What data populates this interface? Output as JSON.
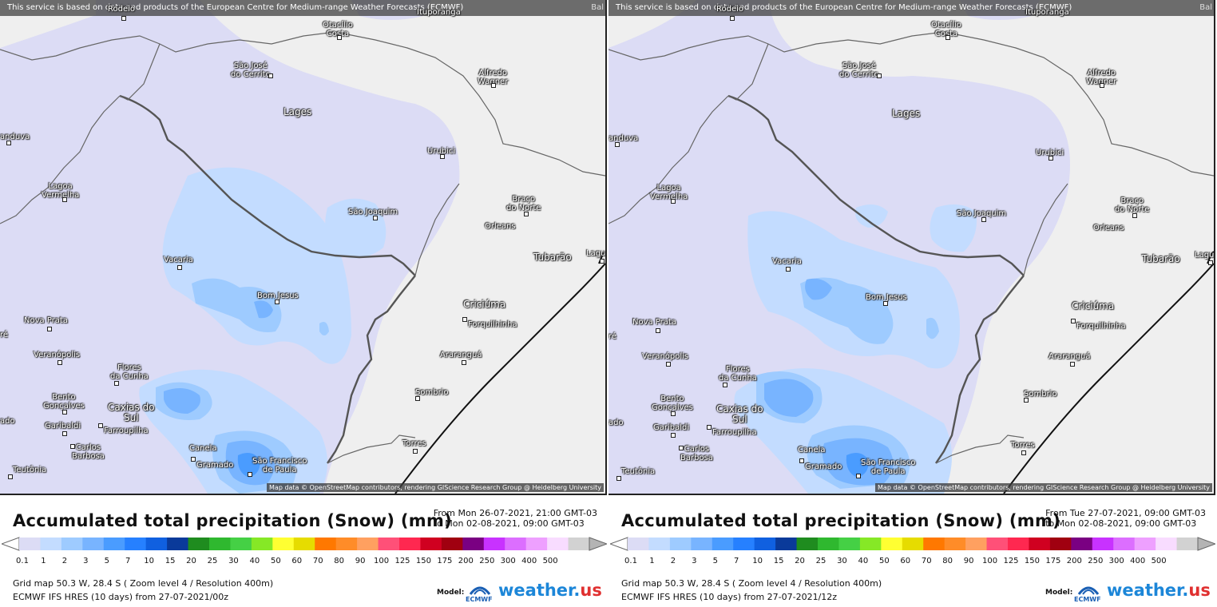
{
  "banner_text": "This service is based on data and products of the European Centre for Medium-range Weather Forecasts (ECMWF)",
  "attribution": "Map data © OpenStreetMap contributors, rendering GIScience Research Group @ Heidelberg University",
  "legend_title": "Accumulated total precipitation (Snow) (mm)",
  "scale_values": [
    "0.1",
    "1",
    "2",
    "3",
    "5",
    "7",
    "10",
    "15",
    "20",
    "25",
    "30",
    "40",
    "50",
    "60",
    "70",
    "80",
    "90",
    "100",
    "125",
    "150",
    "175",
    "200",
    "250",
    "300",
    "400",
    "500"
  ],
  "scale_colors": [
    "#dcdcf5",
    "#c3dcff",
    "#9ecbff",
    "#78b4ff",
    "#4a9cff",
    "#2680ff",
    "#1060e0",
    "#0a3a9a",
    "#1f8c1f",
    "#2fb82f",
    "#45d045",
    "#86e826",
    "#ffff32",
    "#e6dc00",
    "#ff7800",
    "#ff8c28",
    "#ffa060",
    "#ff5078",
    "#ff2850",
    "#d00020",
    "#a00010",
    "#7a0082",
    "#c832ff",
    "#dc6eff",
    "#eea0ff",
    "#f8dcff",
    "#d2d2d2"
  ],
  "model_label": "Model:",
  "ecmwf_name": "ECMWF",
  "brand_name": "weather.",
  "brand_tld": "us",
  "panels": [
    {
      "from_line": "From Mon 26-07-2021, 21:00 GMT-03",
      "to_line": "to Mon 02-08-2021, 09:00 GMT-03",
      "grid_info": "Grid map 50.3 W, 28.4 S ( Zoom level 4 / Resolution 400m)",
      "model_info": "ECMWF IFS HRES (10 days) from 27-07-2021/00z"
    },
    {
      "from_line": "From Tue 27-07-2021, 09:00 GMT-03",
      "to_line": "to Mon 02-08-2021, 09:00 GMT-03",
      "grid_info": "Grid map 50.3 W, 28.4 S ( Zoom level 4 / Resolution 400m)",
      "model_info": "ECMWF IFS HRES (10 days) from 27-07-2021/12z"
    }
  ],
  "banner_corner": "Bal",
  "cities": {
    "rodeio": "Rodeio",
    "otacilio_l1": "Otacílio",
    "otacilio_l2": "Costa",
    "ituporanga": "Ituporanga",
    "saojose_l1": "São José",
    "saojose_l2": "do Cerrito",
    "alfredo_l1": "Alfredo",
    "alfredo_l2": "Wagner",
    "lages": "Lages",
    "anduva": "anduva",
    "urubici": "Urubici",
    "lagoa_l1": "Lagoa",
    "lagoa_l2": "Vermelha",
    "braco_l1": "Braço",
    "braco_l2": "do Norte",
    "saojoaquim": "São Joaquim",
    "orleans": "Orleans",
    "vacaria": "Vacaria",
    "tubarao": "Tubarão",
    "laguna": "Lagu",
    "bomjesus": "Bom Jesus",
    "criciuma": "Criciúma",
    "forquilhinha": "Forquilhinha",
    "novaprata": "Nova Prata",
    "re": "ré",
    "veranopolis": "Veranópolis",
    "araragua": "Araranguá",
    "flores_l1": "Flores",
    "flores_l2": "da Cunha",
    "bento_l1": "Bento",
    "bento_l2": "Gonçalves",
    "caxias_l1": "Caxias do",
    "caxias_l2": "Sul",
    "sombrio": "Sombrio",
    "garibaldi": "Garibaldi",
    "farroupilha": "Farroupilha",
    "ado": "ado",
    "torres": "Torres",
    "carlos_l1": "Carlos",
    "carlos_l2": "Barbosa",
    "canela": "Canela",
    "gramado": "Gramado",
    "saofrancisco_l1": "São Francisco",
    "saofrancisco_l2": "de Paula",
    "teutonia": "Teutônia"
  }
}
